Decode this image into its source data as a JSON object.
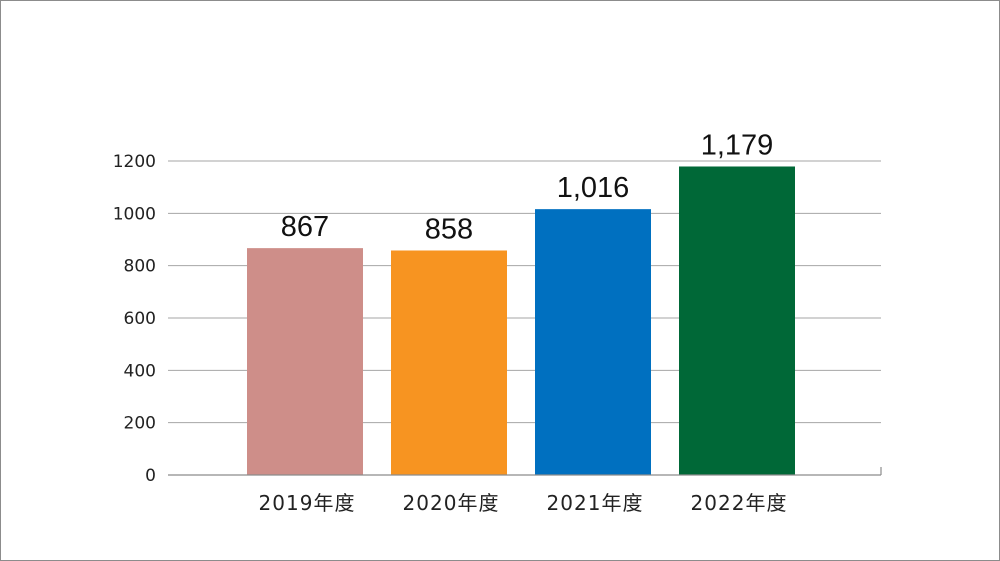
{
  "chart_data": {
    "type": "bar",
    "categories": [
      "2019年度",
      "2020年度",
      "2021年度",
      "2022年度"
    ],
    "values": [
      867,
      858,
      1016,
      1179
    ],
    "data_labels": [
      "867",
      "858",
      "1,016",
      "1,179"
    ],
    "colors": [
      "#CE8E89",
      "#F79421",
      "#0070C0",
      "#006837"
    ],
    "ylim": [
      0,
      1200
    ],
    "yticks": [
      0,
      200,
      400,
      600,
      800,
      1000,
      1200
    ],
    "ytick_labels": [
      "0",
      "200",
      "400",
      "600",
      "800",
      "1000",
      "1200"
    ],
    "grid": true,
    "title": "",
    "xlabel": "",
    "ylabel": ""
  }
}
